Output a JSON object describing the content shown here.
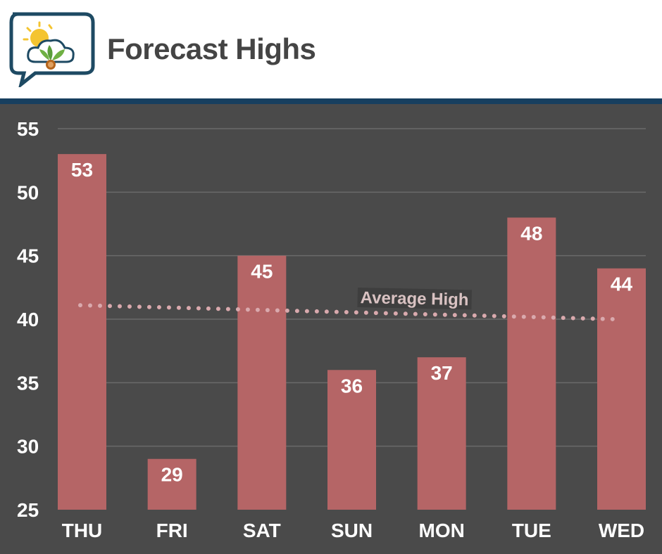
{
  "header": {
    "title": "Forecast Highs",
    "logo_icon": "sun-cloud-leaf-chat-bubble-icon"
  },
  "colors": {
    "background": "#4a4a4a",
    "bar": "#b56566",
    "average_line": "#d9a9ad",
    "header_rule": "#173f5f",
    "title": "#444444",
    "gridline": "#6a6a6a"
  },
  "chart_data": {
    "type": "bar",
    "title": "Forecast Highs",
    "xlabel": "",
    "ylabel": "",
    "categories": [
      "THU",
      "FRI",
      "SAT",
      "SUN",
      "MON",
      "TUE",
      "WED"
    ],
    "values": [
      53,
      29,
      45,
      36,
      37,
      48,
      44
    ],
    "data_labels": [
      "53",
      "29",
      "45",
      "36",
      "37",
      "48",
      "44"
    ],
    "ylim": [
      25,
      55
    ],
    "yticks": [
      25,
      30,
      35,
      40,
      45,
      50,
      55
    ],
    "ytick_labels": [
      "25",
      "30",
      "35",
      "40",
      "45",
      "50",
      "55"
    ],
    "grid": true,
    "average_line": {
      "label": "Average High",
      "style": "dotted",
      "start_value": 41.1,
      "end_value": 40.0
    }
  }
}
